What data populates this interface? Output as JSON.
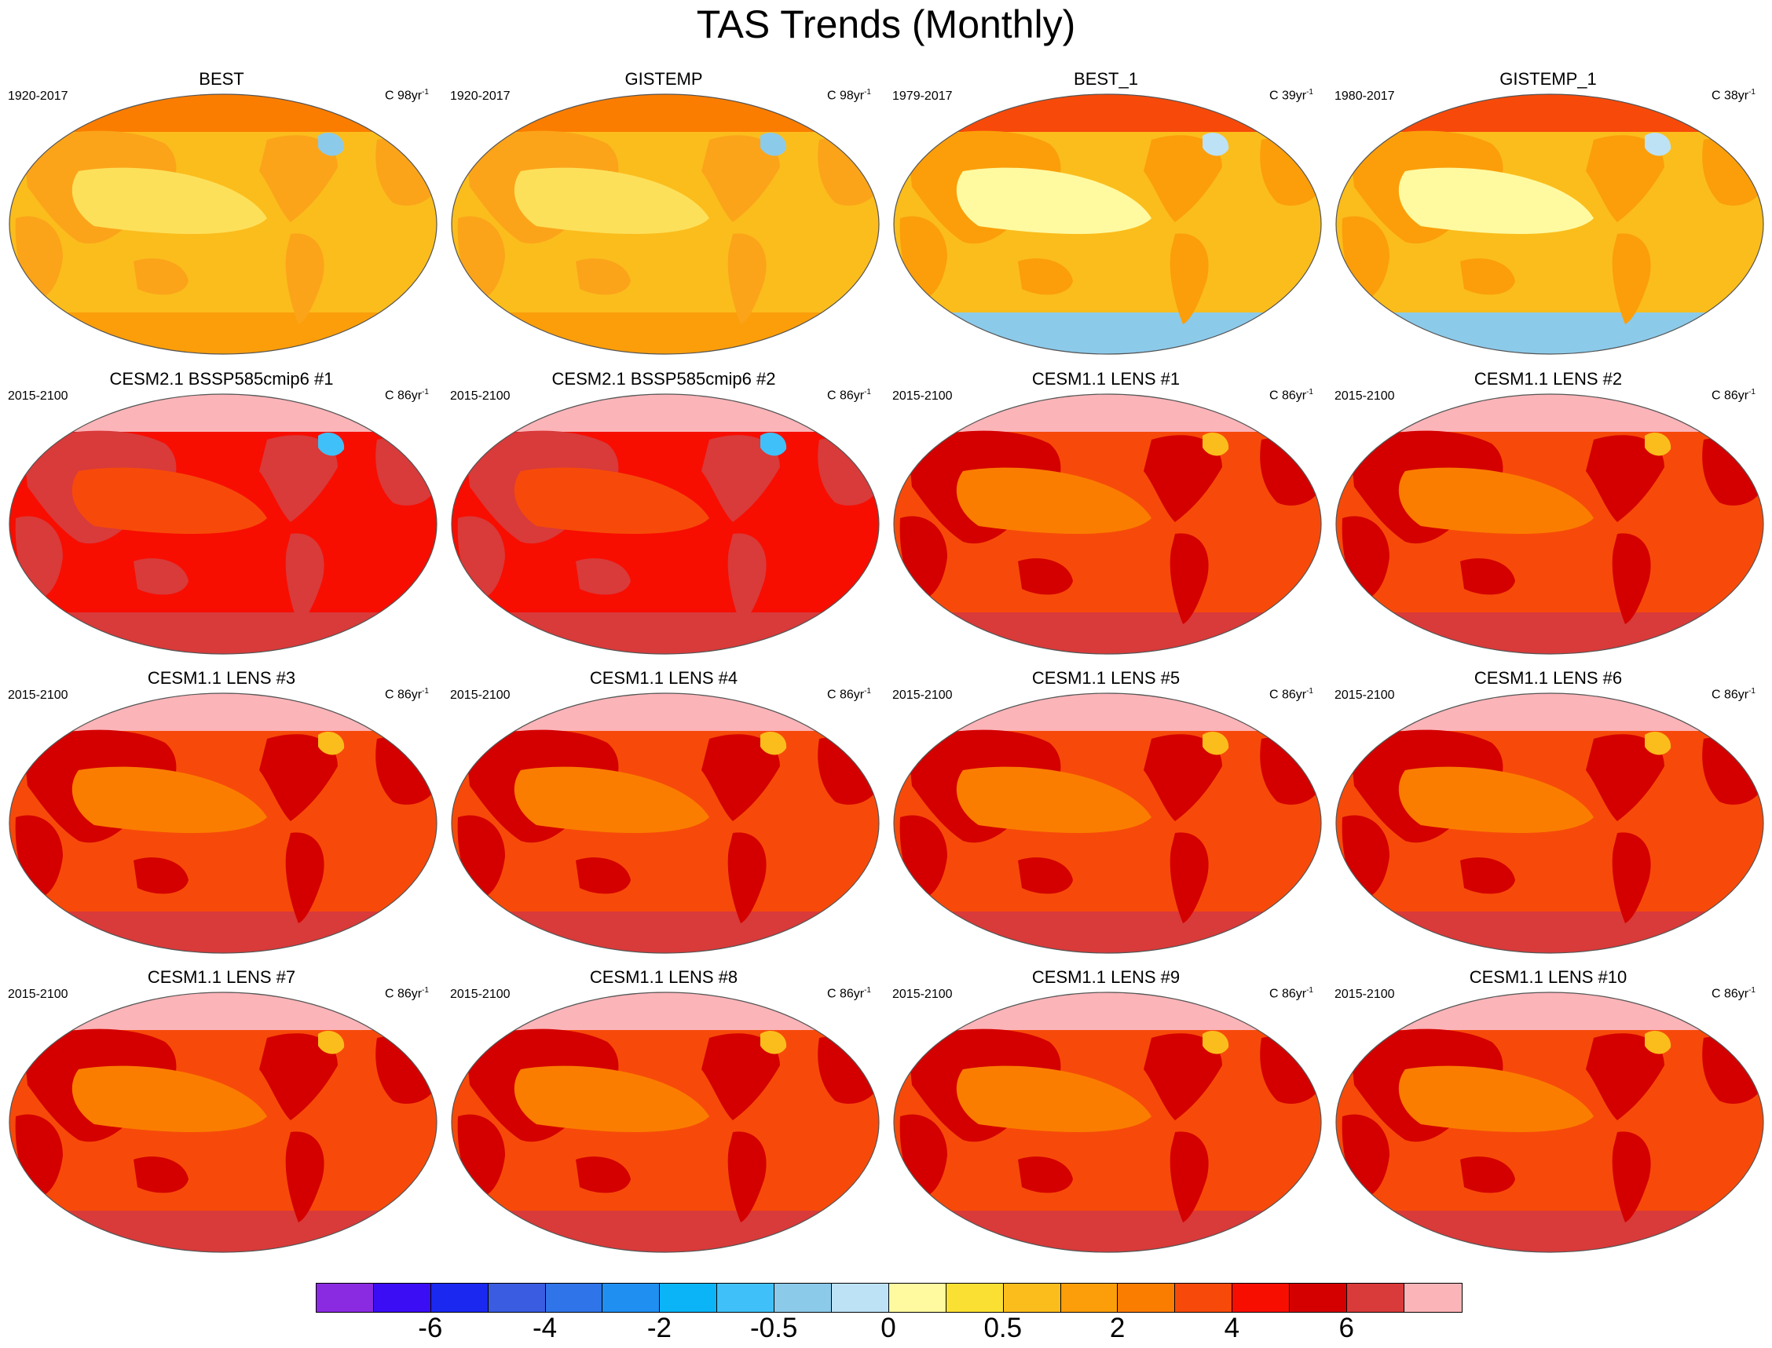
{
  "title": "TAS Trends (Monthly)",
  "panels": [
    {
      "title": "BEST",
      "period": "1920-2017",
      "units_prefix": "C 98yr",
      "units_sup": "-1",
      "scheme": "obs_long"
    },
    {
      "title": "GISTEMP",
      "period": "1920-2017",
      "units_prefix": "C 98yr",
      "units_sup": "-1",
      "scheme": "obs_long"
    },
    {
      "title": "BEST_1",
      "period": "1979-2017",
      "units_prefix": "C 39yr",
      "units_sup": "-1",
      "scheme": "obs_short"
    },
    {
      "title": "GISTEMP_1",
      "period": "1980-2017",
      "units_prefix": "C 38yr",
      "units_sup": "-1",
      "scheme": "obs_short"
    },
    {
      "title": "CESM2.1 BSSP585cmip6 #1",
      "period": "2015-2100",
      "units_prefix": "C 86yr",
      "units_sup": "-1",
      "scheme": "cesm2"
    },
    {
      "title": "CESM2.1 BSSP585cmip6 #2",
      "period": "2015-2100",
      "units_prefix": "C 86yr",
      "units_sup": "-1",
      "scheme": "cesm2"
    },
    {
      "title": "CESM1.1 LENS #1",
      "period": "2015-2100",
      "units_prefix": "C 86yr",
      "units_sup": "-1",
      "scheme": "lens"
    },
    {
      "title": "CESM1.1 LENS #2",
      "period": "2015-2100",
      "units_prefix": "C 86yr",
      "units_sup": "-1",
      "scheme": "lens"
    },
    {
      "title": "CESM1.1 LENS #3",
      "period": "2015-2100",
      "units_prefix": "C 86yr",
      "units_sup": "-1",
      "scheme": "lens"
    },
    {
      "title": "CESM1.1 LENS #4",
      "period": "2015-2100",
      "units_prefix": "C 86yr",
      "units_sup": "-1",
      "scheme": "lens"
    },
    {
      "title": "CESM1.1 LENS #5",
      "period": "2015-2100",
      "units_prefix": "C 86yr",
      "units_sup": "-1",
      "scheme": "lens"
    },
    {
      "title": "CESM1.1 LENS #6",
      "period": "2015-2100",
      "units_prefix": "C 86yr",
      "units_sup": "-1",
      "scheme": "lens"
    },
    {
      "title": "CESM1.1 LENS #7",
      "period": "2015-2100",
      "units_prefix": "C 86yr",
      "units_sup": "-1",
      "scheme": "lens"
    },
    {
      "title": "CESM1.1 LENS #8",
      "period": "2015-2100",
      "units_prefix": "C 86yr",
      "units_sup": "-1",
      "scheme": "lens"
    },
    {
      "title": "CESM1.1 LENS #9",
      "period": "2015-2100",
      "units_prefix": "C 86yr",
      "units_sup": "-1",
      "scheme": "lens"
    },
    {
      "title": "CESM1.1 LENS #10",
      "period": "2015-2100",
      "units_prefix": "C 86yr",
      "units_sup": "-1",
      "scheme": "lens"
    }
  ],
  "colorbar": {
    "colors": [
      "#8a2be2",
      "#3a0df5",
      "#1a28f0",
      "#3a5ce0",
      "#2f74e8",
      "#1f8ff2",
      "#0ab4f7",
      "#40c0f8",
      "#8ccaea",
      "#bde2f6",
      "#fffaa0",
      "#fbe034",
      "#fbbd1c",
      "#fb9e0a",
      "#fb7d00",
      "#f74a0a",
      "#f70e00",
      "#d40000",
      "#d93a3a",
      "#fbb4b8"
    ],
    "labels": [
      "-6",
      "-4",
      "-2",
      "-0.5",
      "0",
      "0.5",
      "2",
      "4",
      "6"
    ]
  },
  "schemes": {
    "obs_long": {
      "base": "#fbbd1c",
      "land": "#fba41a",
      "south": "#fb9e0a",
      "north": "#fb7d00",
      "accent": "#fde05a",
      "spot": "#8ccaea"
    },
    "obs_short": {
      "base": "#fbbd1c",
      "land": "#fb9e0a",
      "south": "#8ccaea",
      "north": "#f74a0a",
      "accent": "#fffaa0",
      "spot": "#bde2f6"
    },
    "cesm2": {
      "base": "#f70e00",
      "land": "#d93a3a",
      "south": "#d93a3a",
      "north": "#fbb4b8",
      "accent": "#f74a0a",
      "spot": "#40c0f8"
    },
    "lens": {
      "base": "#f74a0a",
      "land": "#d40000",
      "south": "#d93a3a",
      "north": "#fbb4b8",
      "accent": "#fb7d00",
      "spot": "#fbbd1c"
    }
  }
}
